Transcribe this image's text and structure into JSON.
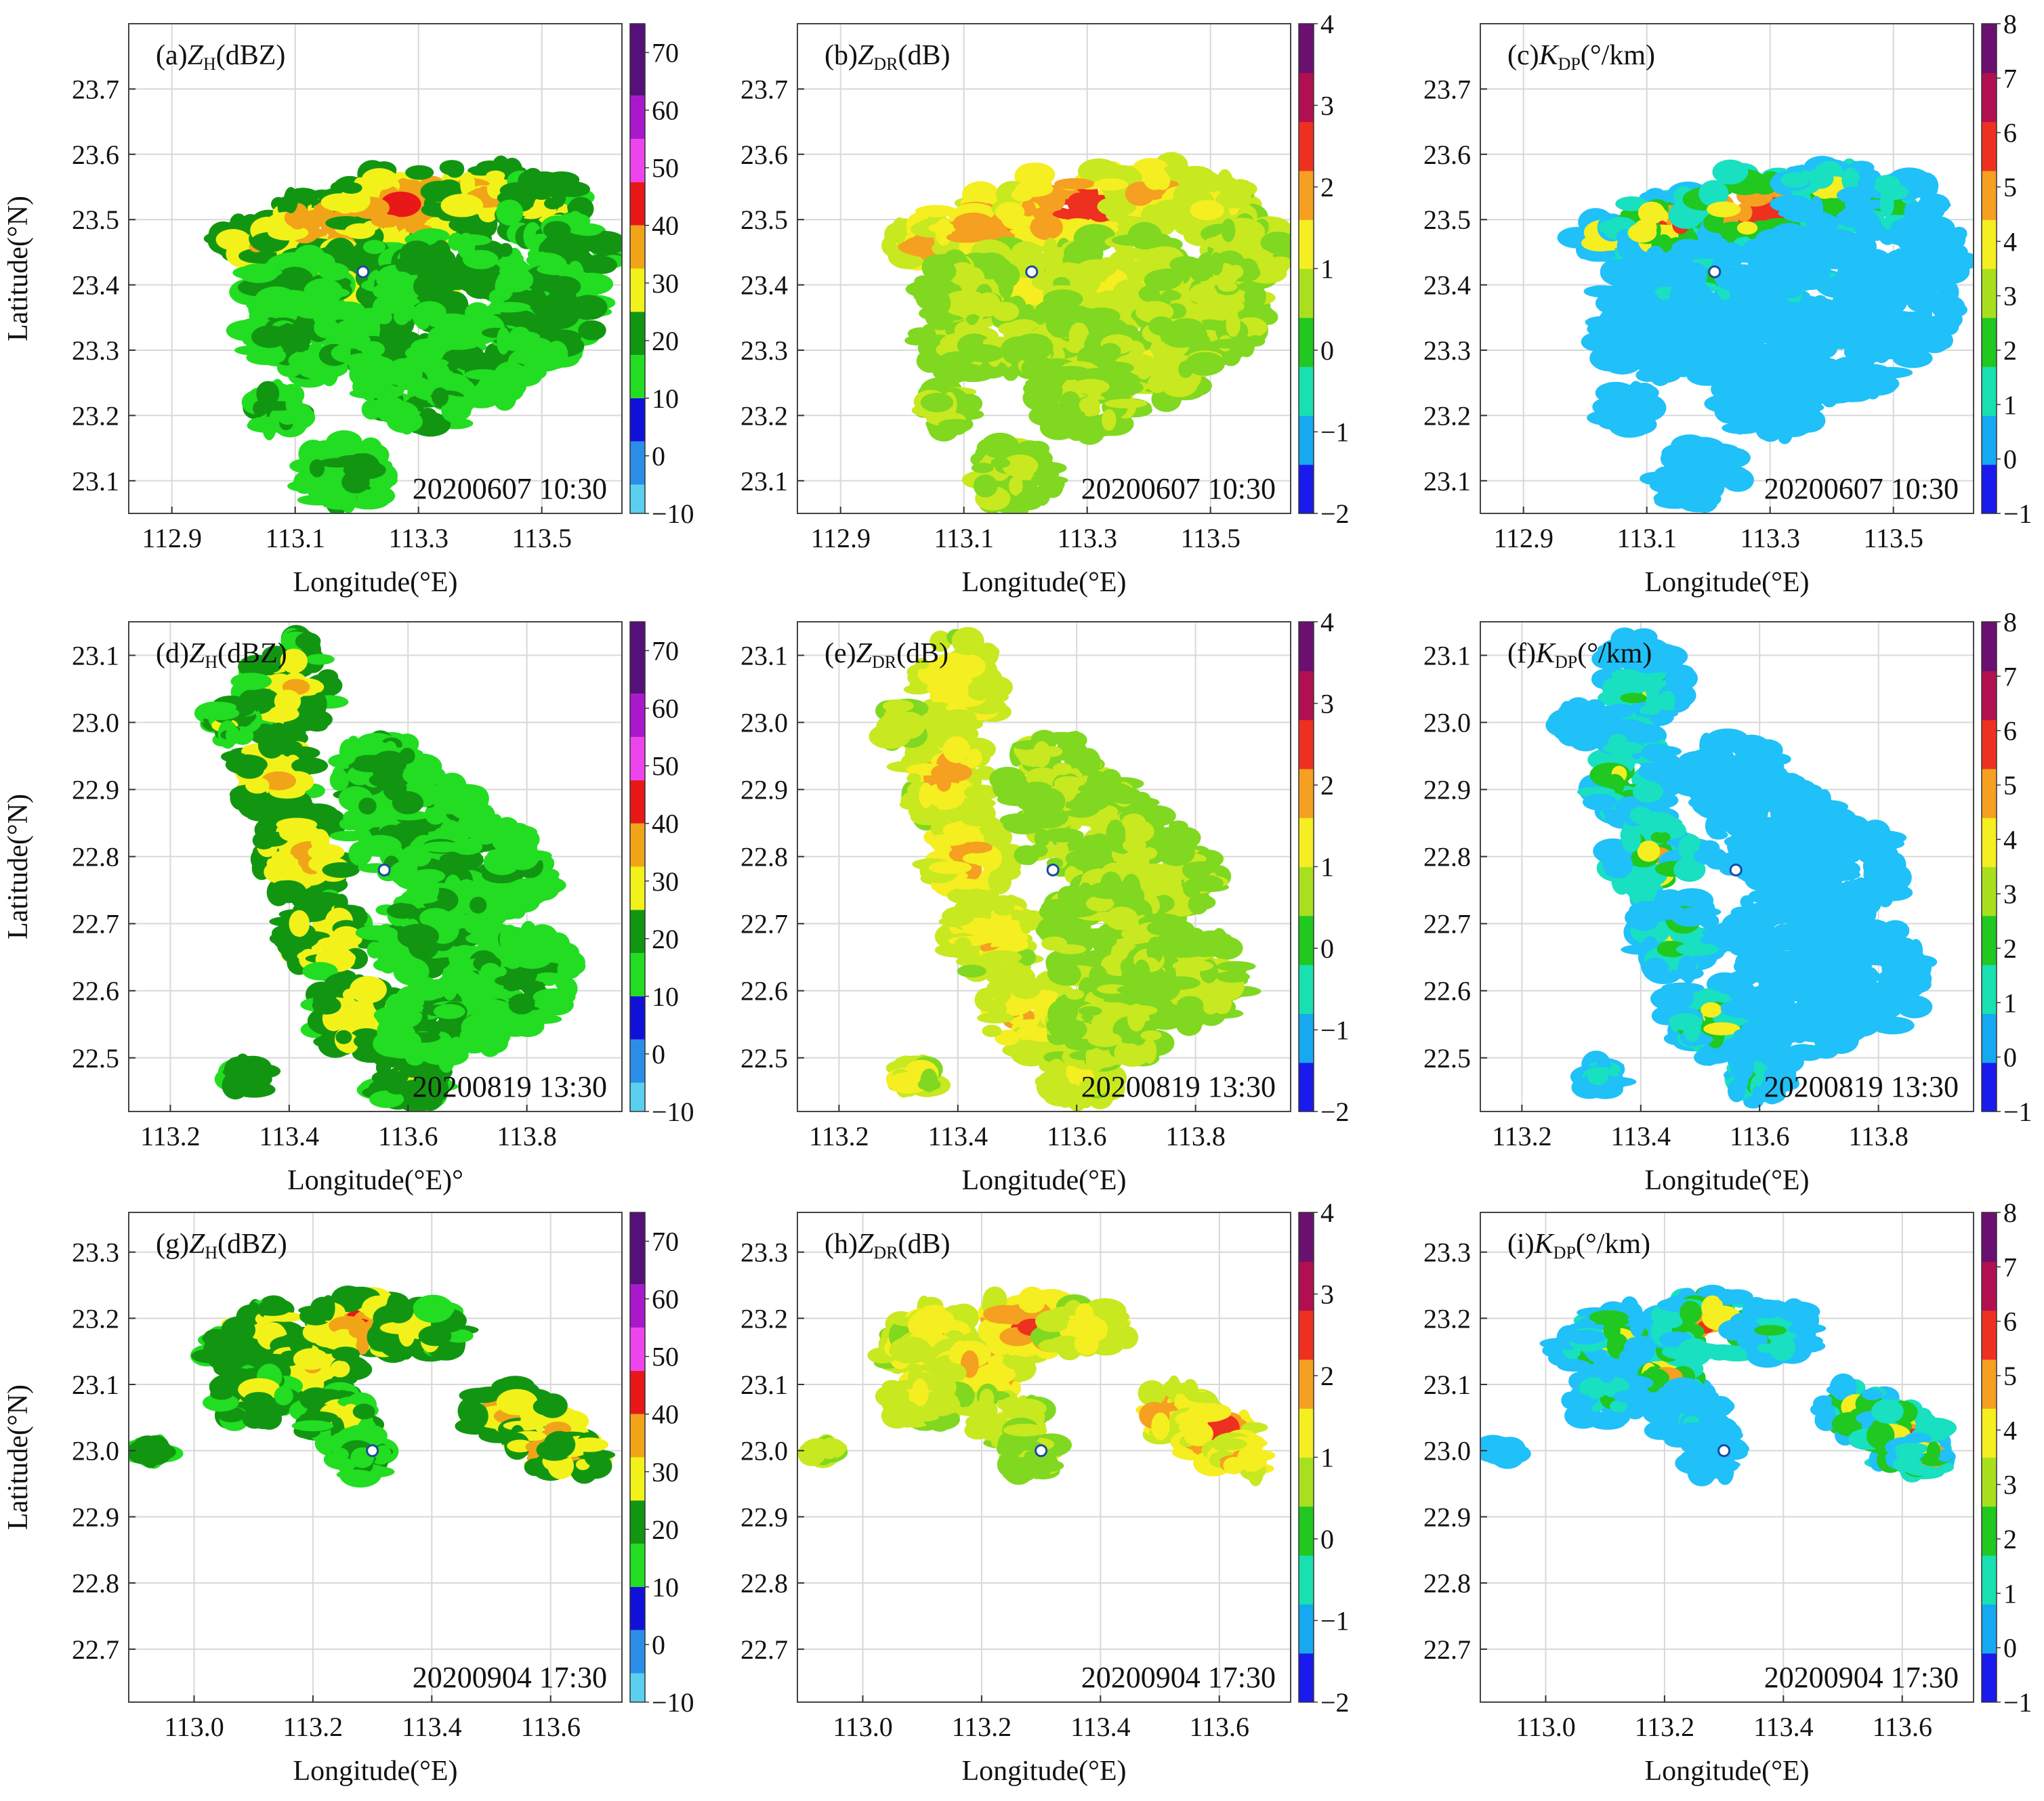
{
  "chart_data": [
    {
      "type": "heatmap",
      "panel": "(a)",
      "var": "Z",
      "sub": "H",
      "unit": "(dBZ)",
      "timestamp": "20200607 10:30",
      "xlabel": "Longitude(°E)",
      "ylabel": "Latitude(°N)",
      "xlim": [
        112.83,
        113.63
      ],
      "ylim": [
        23.05,
        23.8
      ],
      "xticks": [
        "112.9",
        "113.1",
        "113.3",
        "113.5"
      ],
      "xtick_values": [
        112.9,
        113.1,
        113.3,
        113.5
      ],
      "yticks": [
        "23.1",
        "23.2",
        "23.3",
        "23.4",
        "23.5",
        "23.6",
        "23.7"
      ],
      "ytick_values": [
        23.1,
        23.2,
        23.3,
        23.4,
        23.5,
        23.6,
        23.7
      ],
      "colorbar": {
        "min": -10,
        "max": 75,
        "labels": [
          "−10",
          "0",
          "10",
          "20",
          "30",
          "40",
          "50",
          "60",
          "70"
        ],
        "label_values": [
          -10,
          0,
          10,
          20,
          30,
          40,
          50,
          60,
          70
        ]
      },
      "radar_site": [
        113.21,
        23.42
      ]
    },
    {
      "type": "heatmap",
      "panel": "(b)",
      "var": "Z",
      "sub": "DR",
      "unit": "(dB)",
      "timestamp": "20200607 10:30",
      "xlabel": "Longitude(°E)",
      "ylabel": "",
      "xlim": [
        112.83,
        113.63
      ],
      "ylim": [
        23.05,
        23.8
      ],
      "xticks": [
        "112.9",
        "113.1",
        "113.3",
        "113.5"
      ],
      "xtick_values": [
        112.9,
        113.1,
        113.3,
        113.5
      ],
      "yticks": [
        "23.1",
        "23.2",
        "23.3",
        "23.4",
        "23.5",
        "23.6",
        "23.7"
      ],
      "ytick_values": [
        23.1,
        23.2,
        23.3,
        23.4,
        23.5,
        23.6,
        23.7
      ],
      "colorbar": {
        "min": -2,
        "max": 4,
        "labels": [
          "−2",
          "−1",
          "0",
          "1",
          "2",
          "3",
          "4"
        ],
        "label_values": [
          -2,
          -1,
          0,
          1,
          2,
          3,
          4
        ]
      },
      "radar_site": [
        113.21,
        23.42
      ]
    },
    {
      "type": "heatmap",
      "panel": "(c)",
      "var": "K",
      "sub": "DP",
      "unit": "(°/km)",
      "timestamp": "20200607 10:30",
      "xlabel": "Longitude(°E)",
      "ylabel": "",
      "xlim": [
        112.83,
        113.63
      ],
      "ylim": [
        23.05,
        23.8
      ],
      "xticks": [
        "112.9",
        "113.1",
        "113.3",
        "113.5"
      ],
      "xtick_values": [
        112.9,
        113.1,
        113.3,
        113.5
      ],
      "yticks": [
        "23.1",
        "23.2",
        "23.3",
        "23.4",
        "23.5",
        "23.6",
        "23.7"
      ],
      "ytick_values": [
        23.1,
        23.2,
        23.3,
        23.4,
        23.5,
        23.6,
        23.7
      ],
      "colorbar": {
        "min": -1,
        "max": 8,
        "labels": [
          "−1",
          "0",
          "1",
          "2",
          "3",
          "4",
          "5",
          "6",
          "7",
          "8"
        ],
        "label_values": [
          -1,
          0,
          1,
          2,
          3,
          4,
          5,
          6,
          7,
          8
        ]
      },
      "radar_site": [
        113.21,
        23.42
      ]
    },
    {
      "type": "heatmap",
      "panel": "(d)",
      "var": "Z",
      "sub": "H",
      "unit": "(dBZ)",
      "timestamp": "20200819 13:30",
      "xlabel": "Longitude(°E)°",
      "ylabel": "Latitude(°N)",
      "xlim": [
        113.13,
        113.96
      ],
      "ylim": [
        22.42,
        23.15
      ],
      "xticks": [
        "113.2",
        "113.4",
        "113.6",
        "113.8"
      ],
      "xtick_values": [
        113.2,
        113.4,
        113.6,
        113.8
      ],
      "yticks": [
        "22.5",
        "22.6",
        "22.7",
        "22.8",
        "22.9",
        "23.0",
        "23.1"
      ],
      "ytick_values": [
        22.5,
        22.6,
        22.7,
        22.8,
        22.9,
        23.0,
        23.1
      ],
      "colorbar": {
        "min": -10,
        "max": 75,
        "labels": [
          "−10",
          "0",
          "10",
          "20",
          "30",
          "40",
          "50",
          "60",
          "70"
        ],
        "label_values": [
          -10,
          0,
          10,
          20,
          30,
          40,
          50,
          60,
          70
        ]
      },
      "radar_site": [
        113.56,
        22.78
      ]
    },
    {
      "type": "heatmap",
      "panel": "(e)",
      "var": "Z",
      "sub": "DR",
      "unit": "(dB)",
      "timestamp": "20200819 13:30",
      "xlabel": "Longitude(°E)",
      "ylabel": "",
      "xlim": [
        113.13,
        113.96
      ],
      "ylim": [
        22.42,
        23.15
      ],
      "xticks": [
        "113.2",
        "113.4",
        "113.6",
        "113.8"
      ],
      "xtick_values": [
        113.2,
        113.4,
        113.6,
        113.8
      ],
      "yticks": [
        "22.5",
        "22.6",
        "22.7",
        "22.8",
        "22.9",
        "23.0",
        "23.1"
      ],
      "ytick_values": [
        22.5,
        22.6,
        22.7,
        22.8,
        22.9,
        23.0,
        23.1
      ],
      "colorbar": {
        "min": -2,
        "max": 4,
        "labels": [
          "−2",
          "−1",
          "0",
          "1",
          "2",
          "3",
          "4"
        ],
        "label_values": [
          -2,
          -1,
          0,
          1,
          2,
          3,
          4
        ]
      },
      "radar_site": [
        113.56,
        22.78
      ]
    },
    {
      "type": "heatmap",
      "panel": "(f)",
      "var": "K",
      "sub": "DP",
      "unit": "(°/km)",
      "timestamp": "20200819 13:30",
      "xlabel": "Longitude(°E)",
      "ylabel": "",
      "xlim": [
        113.13,
        113.96
      ],
      "ylim": [
        22.42,
        23.15
      ],
      "xticks": [
        "113.2",
        "113.4",
        "113.6",
        "113.8"
      ],
      "xtick_values": [
        113.2,
        113.4,
        113.6,
        113.8
      ],
      "yticks": [
        "22.5",
        "22.6",
        "22.7",
        "22.8",
        "22.9",
        "23.0",
        "23.1"
      ],
      "ytick_values": [
        22.5,
        22.6,
        22.7,
        22.8,
        22.9,
        23.0,
        23.1
      ],
      "colorbar": {
        "min": -1,
        "max": 8,
        "labels": [
          "−1",
          "0",
          "1",
          "2",
          "3",
          "4",
          "5",
          "6",
          "7",
          "8"
        ],
        "label_values": [
          -1,
          0,
          1,
          2,
          3,
          4,
          5,
          6,
          7,
          8
        ]
      },
      "radar_site": [
        113.56,
        22.78
      ]
    },
    {
      "type": "heatmap",
      "panel": "(g)",
      "var": "Z",
      "sub": "H",
      "unit": "(dBZ)",
      "timestamp": "20200904 17:30",
      "xlabel": "Longitude(°E)",
      "ylabel": "Latitude(°N)",
      "xlim": [
        112.89,
        113.72
      ],
      "ylim": [
        22.62,
        23.36
      ],
      "xticks": [
        "113.0",
        "113.2",
        "113.4",
        "113.6"
      ],
      "xtick_values": [
        113.0,
        113.2,
        113.4,
        113.6
      ],
      "yticks": [
        "22.7",
        "22.8",
        "22.9",
        "23.0",
        "23.1",
        "23.2",
        "23.3"
      ],
      "ytick_values": [
        22.7,
        22.8,
        22.9,
        23.0,
        23.1,
        23.2,
        23.3
      ],
      "colorbar": {
        "min": -10,
        "max": 75,
        "labels": [
          "−10",
          "0",
          "10",
          "20",
          "30",
          "40",
          "50",
          "60",
          "70"
        ],
        "label_values": [
          -10,
          0,
          10,
          20,
          30,
          40,
          50,
          60,
          70
        ]
      },
      "radar_site": [
        113.3,
        23.0
      ]
    },
    {
      "type": "heatmap",
      "panel": "(h)",
      "var": "Z",
      "sub": "DR",
      "unit": "(dB)",
      "timestamp": "20200904 17:30",
      "xlabel": "Longitude(°E)",
      "ylabel": "",
      "xlim": [
        112.89,
        113.72
      ],
      "ylim": [
        22.62,
        23.36
      ],
      "xticks": [
        "113.0",
        "113.2",
        "113.4",
        "113.6"
      ],
      "xtick_values": [
        113.0,
        113.2,
        113.4,
        113.6
      ],
      "yticks": [
        "22.7",
        "22.8",
        "22.9",
        "23.0",
        "23.1",
        "23.2",
        "23.3"
      ],
      "ytick_values": [
        22.7,
        22.8,
        22.9,
        23.0,
        23.1,
        23.2,
        23.3
      ],
      "colorbar": {
        "min": -2,
        "max": 4,
        "labels": [
          "−2",
          "−1",
          "0",
          "1",
          "2",
          "3",
          "4"
        ],
        "label_values": [
          -2,
          -1,
          0,
          1,
          2,
          3,
          4
        ]
      },
      "radar_site": [
        113.3,
        23.0
      ]
    },
    {
      "type": "heatmap",
      "panel": "(i)",
      "var": "K",
      "sub": "DP",
      "unit": "(°/km)",
      "timestamp": "20200904 17:30",
      "xlabel": "Longitude(°E)",
      "ylabel": "",
      "xlim": [
        112.89,
        113.72
      ],
      "ylim": [
        22.62,
        23.36
      ],
      "xticks": [
        "113.0",
        "113.2",
        "113.4",
        "113.6"
      ],
      "xtick_values": [
        113.0,
        113.2,
        113.4,
        113.6
      ],
      "yticks": [
        "22.7",
        "22.8",
        "22.9",
        "23.0",
        "23.1",
        "23.2",
        "23.3"
      ],
      "ytick_values": [
        22.7,
        22.8,
        22.9,
        23.0,
        23.1,
        23.2,
        23.3
      ],
      "colorbar": {
        "min": -1,
        "max": 8,
        "labels": [
          "−1",
          "0",
          "1",
          "2",
          "3",
          "4",
          "5",
          "6",
          "7",
          "8"
        ],
        "label_values": [
          -1,
          0,
          1,
          2,
          3,
          4,
          5,
          6,
          7,
          8
        ]
      },
      "radar_site": [
        113.3,
        23.0
      ]
    }
  ],
  "colors": {
    "zh_bins": [
      "#5ad0ee",
      "#2a8ee8",
      "#1010d8",
      "#22dd22",
      "#129612",
      "#f2f21a",
      "#f2a418",
      "#e81818",
      "#ee44ee",
      "#aa18cc",
      "#55107a"
    ],
    "cont_scale": [
      "#1a1aee",
      "#16a8f0",
      "#18e0b0",
      "#20c820",
      "#a8e020",
      "#f5ee20",
      "#f5a020",
      "#ee3020",
      "#b01050",
      "#6a1070"
    ],
    "zh_echo": [
      "#22dd22",
      "#129612",
      "#f2f21a",
      "#f2a418",
      "#e81818"
    ],
    "zdr_echo": [
      "#20c820",
      "#80d820",
      "#c8e820",
      "#f5ee20",
      "#f5a020",
      "#ee3020",
      "#b01050"
    ],
    "kdp_echo": [
      "#20c0f8",
      "#18e0c0",
      "#20c820",
      "#f5ee20",
      "#f5a020",
      "#ee3020",
      "#b01050"
    ]
  }
}
